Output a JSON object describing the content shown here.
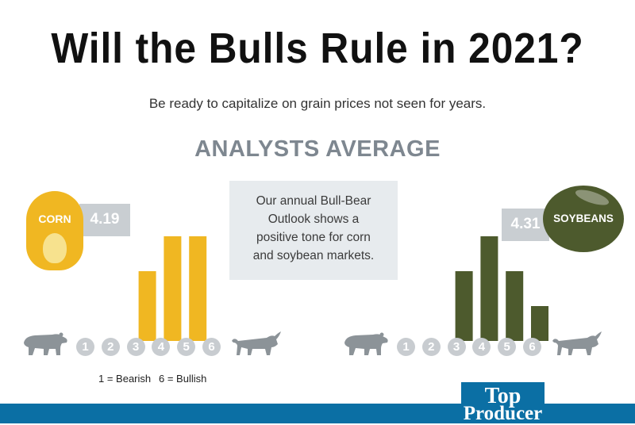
{
  "header": {
    "title": "Will the Bulls Rule in 2021?",
    "subtitle": "Be ready to capitalize on grain prices not seen for years."
  },
  "section_title": "ANALYSTS AVERAGE",
  "info_box": {
    "lines": [
      "Our annual Bull-Bear",
      "Outlook shows a",
      "positive tone for corn",
      "and soybean markets."
    ]
  },
  "colors": {
    "corn": "#f0b722",
    "soybeans": "#4d5a2d",
    "gray": "#c8ccd0",
    "section_title": "#7e8790",
    "footer": "#0b6fa4"
  },
  "corn": {
    "label": "CORN",
    "average": "4.19"
  },
  "soybeans": {
    "label": "SOYBEANS",
    "average": "4.31"
  },
  "scale": [
    "1",
    "2",
    "3",
    "4",
    "5",
    "6"
  ],
  "legend": {
    "bearish": "1 = Bearish",
    "bullish": "6 = Bullish"
  },
  "icons": {
    "bear": "bear-icon",
    "bull": "bull-icon"
  },
  "logo": {
    "line1": "Top",
    "line2": "Producer"
  },
  "chart_data": [
    {
      "type": "bar",
      "title": "",
      "series": [
        {
          "name": "CORN",
          "values": [
            0,
            0,
            2,
            3,
            3,
            0
          ]
        }
      ],
      "categories": [
        "1",
        "2",
        "3",
        "4",
        "5",
        "6"
      ],
      "ylim": [
        0,
        3.2
      ],
      "grid": false,
      "annotation": "4.19"
    },
    {
      "type": "bar",
      "title": "",
      "series": [
        {
          "name": "SOYBEANS",
          "values": [
            0,
            0,
            2,
            3,
            2,
            1
          ]
        }
      ],
      "categories": [
        "1",
        "2",
        "3",
        "4",
        "5",
        "6"
      ],
      "ylim": [
        0,
        3.2
      ],
      "grid": false,
      "annotation": "4.31"
    }
  ]
}
